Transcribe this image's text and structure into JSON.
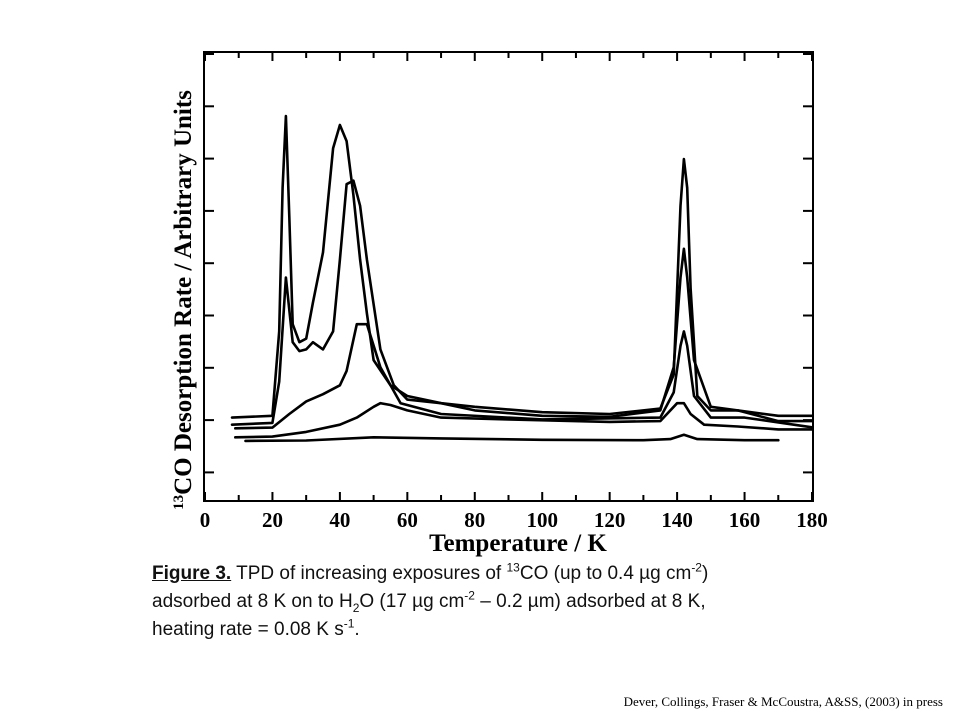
{
  "chart_data": {
    "type": "line",
    "xlabel": "Temperature / K",
    "ylabel_pre": "13",
    "ylabel": "CO Desorption Rate / Arbitrary Units",
    "xlim": [
      0,
      180
    ],
    "ylim": [
      0,
      1
    ],
    "x_ticks": [
      "0",
      "20",
      "40",
      "60",
      "80",
      "100",
      "120",
      "140",
      "160",
      "180"
    ],
    "grid": false,
    "series": [
      {
        "x": [
          12,
          30,
          50,
          70,
          100,
          130,
          138,
          142,
          146,
          160,
          170
        ],
        "y": [
          0.095,
          0.096,
          0.105,
          0.102,
          0.098,
          0.097,
          0.1,
          0.112,
          0.1,
          0.097,
          0.097
        ]
      },
      {
        "x": [
          9,
          20,
          30,
          40,
          45,
          50,
          52,
          55,
          60,
          70,
          90,
          120,
          135,
          140,
          142,
          144,
          148,
          158,
          170,
          180
        ],
        "y": [
          0.105,
          0.107,
          0.12,
          0.14,
          0.16,
          0.19,
          0.2,
          0.195,
          0.18,
          0.16,
          0.155,
          0.148,
          0.15,
          0.2,
          0.2,
          0.17,
          0.14,
          0.135,
          0.127,
          0.127
        ]
      },
      {
        "x": [
          9,
          20,
          25,
          30,
          35,
          40,
          42,
          45,
          48,
          52,
          58,
          70,
          100,
          135,
          139,
          141,
          142,
          143,
          145,
          150,
          160,
          180
        ],
        "y": [
          0.13,
          0.132,
          0.17,
          0.205,
          0.225,
          0.25,
          0.29,
          0.42,
          0.42,
          0.3,
          0.2,
          0.17,
          0.155,
          0.16,
          0.23,
          0.36,
          0.4,
          0.36,
          0.22,
          0.16,
          0.16,
          0.133
        ]
      },
      {
        "x": [
          8,
          20,
          22,
          24,
          26,
          28,
          30,
          32,
          35,
          38,
          40,
          42,
          44,
          46,
          48,
          52,
          56,
          60,
          70,
          80,
          100,
          120,
          135,
          139,
          141,
          142,
          143,
          145,
          150,
          158,
          170,
          180
        ],
        "y": [
          0.14,
          0.145,
          0.26,
          0.55,
          0.37,
          0.345,
          0.35,
          0.37,
          0.35,
          0.4,
          0.6,
          0.81,
          0.82,
          0.75,
          0.6,
          0.35,
          0.25,
          0.21,
          0.2,
          0.18,
          0.165,
          0.162,
          0.18,
          0.3,
          0.55,
          0.63,
          0.55,
          0.32,
          0.19,
          0.18,
          0.15,
          0.15
        ]
      },
      {
        "x": [
          8,
          20,
          22,
          23,
          24,
          25,
          26,
          28,
          30,
          32,
          35,
          38,
          40,
          42,
          44,
          46,
          48,
          50,
          55,
          60,
          70,
          80,
          100,
          120,
          135,
          139,
          141,
          142,
          143,
          144,
          146,
          150,
          158,
          170,
          180
        ],
        "y": [
          0.16,
          0.165,
          0.4,
          0.8,
          1.0,
          0.72,
          0.42,
          0.37,
          0.38,
          0.48,
          0.62,
          0.91,
          0.975,
          0.93,
          0.78,
          0.6,
          0.45,
          0.32,
          0.25,
          0.22,
          0.2,
          0.19,
          0.175,
          0.17,
          0.185,
          0.28,
          0.75,
          0.88,
          0.8,
          0.52,
          0.22,
          0.18,
          0.18,
          0.165,
          0.165
        ]
      }
    ]
  },
  "caption": {
    "figure_label": "Figure 3.",
    "part1": " TPD of increasing exposures of ",
    "sup_13": "13",
    "part2": "CO (up to 0.4 µg cm",
    "sup_m2a": "-2",
    "part3": ")",
    "line2a": "adsorbed at 8 K on to H",
    "sub_2": "2",
    "line2b": "O (17 µg cm",
    "sup_m2b": "-2",
    "line2c": " – 0.2 µm) adsorbed at 8 K,",
    "line3a": "heating rate = 0.08 K s",
    "sup_m1": "-1",
    "line3b": "."
  },
  "footer": {
    "citation": "Dever, Collings, Fraser & McCoustra, A&SS, (2003) in press"
  }
}
